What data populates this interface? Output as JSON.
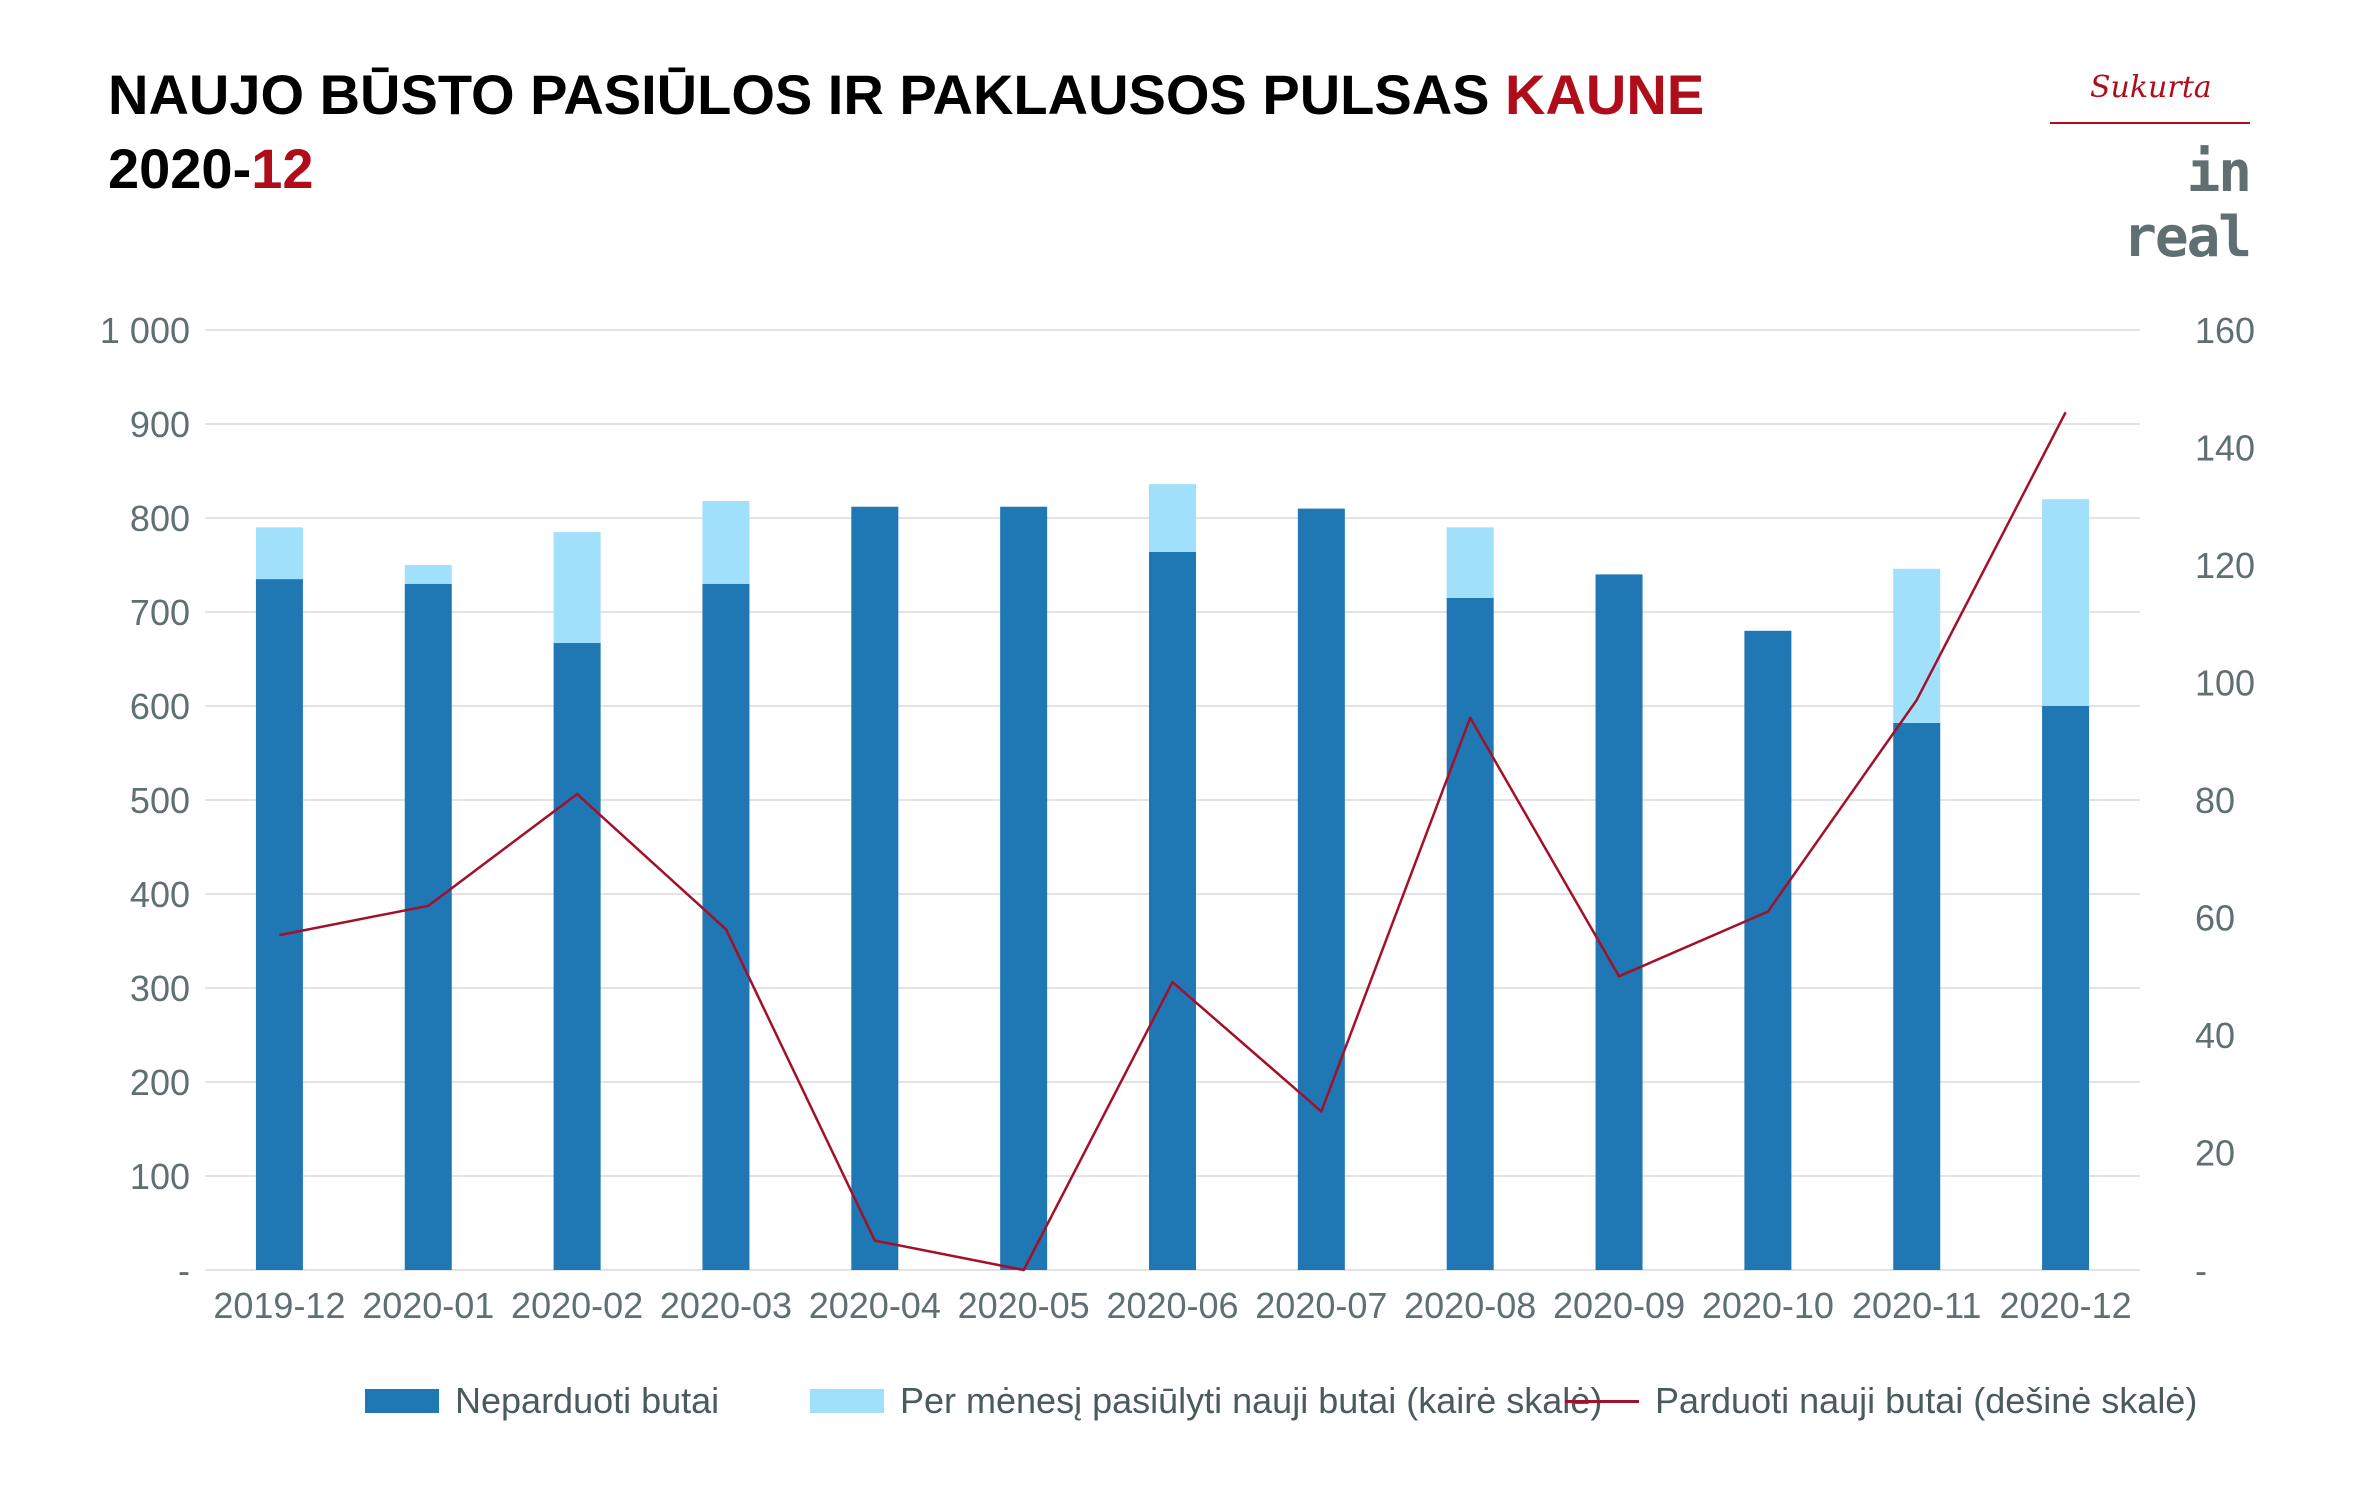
{
  "header": {
    "title_main": "NAUJO BŪSTO PASIŪLOS IR PAKLAUSOS PULSAS ",
    "title_accent": "KAUNE",
    "period_main": "2020-",
    "period_accent": "12"
  },
  "logo": {
    "sub": "Sukurta",
    "main": "in real"
  },
  "colors": {
    "accent": "#b00d1b",
    "unsold": "#1f77b4",
    "offered": "#a1e0fa",
    "sold_line": "#a3102a",
    "axis_text": "#5f6f72",
    "grid": "#e3e3e3"
  },
  "chart_data": {
    "type": "bar",
    "stacked": true,
    "categories": [
      "2019-12",
      "2020-01",
      "2020-02",
      "2020-03",
      "2020-04",
      "2020-05",
      "2020-06",
      "2020-07",
      "2020-08",
      "2020-09",
      "2020-10",
      "2020-11",
      "2020-12"
    ],
    "series": [
      {
        "name": "Neparduoti butai",
        "type": "bar",
        "axis": "left",
        "color": "#1f77b4",
        "values": [
          735,
          730,
          667,
          730,
          812,
          812,
          764,
          810,
          715,
          740,
          680,
          582,
          600
        ]
      },
      {
        "name": "Per mėnesį pasiūlyti nauji butai (kairė skalė)",
        "type": "bar",
        "axis": "left",
        "color": "#a1e0fa",
        "values": [
          55,
          20,
          118,
          88,
          0,
          0,
          72,
          0,
          75,
          0,
          0,
          164,
          220
        ]
      },
      {
        "name": "Parduoti nauji butai (dešinė skalė)",
        "type": "line",
        "axis": "right",
        "color": "#a3102a",
        "values": [
          57,
          62,
          81,
          58,
          5,
          0,
          49,
          27,
          94,
          50,
          61,
          97,
          146
        ]
      }
    ],
    "left_axis": {
      "ylim": [
        0,
        1000
      ],
      "ticks": [
        0,
        100,
        200,
        300,
        400,
        500,
        600,
        700,
        800,
        900,
        1000
      ],
      "tick_labels": [
        "-",
        "100",
        "200",
        "300",
        "400",
        "500",
        "600",
        "700",
        "800",
        "900",
        "1 000"
      ]
    },
    "right_axis": {
      "ylim": [
        0,
        160
      ],
      "ticks": [
        0,
        20,
        40,
        60,
        80,
        100,
        120,
        140,
        160
      ],
      "tick_labels": [
        "-",
        "20",
        "40",
        "60",
        "80",
        "100",
        "120",
        "140",
        "160"
      ]
    },
    "grid": true,
    "legend_position": "bottom"
  },
  "legend": {
    "unsold": "Neparduoti butai",
    "offered": "Per mėnesį pasiūlyti nauji butai (kairė skalė)",
    "sold": "Parduoti nauji butai (dešinė skalė)"
  }
}
